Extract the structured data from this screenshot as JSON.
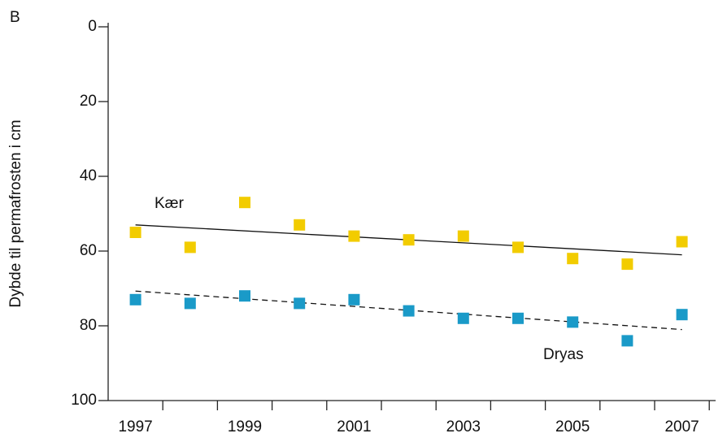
{
  "chart_data": {
    "type": "scatter",
    "panel_label": "B",
    "y_label": "Dybde til permafrosten i cm",
    "categories": [
      "1997",
      null,
      "1999",
      null,
      "2001",
      null,
      "2003",
      null,
      "2005",
      null,
      "2007"
    ],
    "ylim": [
      0,
      100
    ],
    "yticks": [
      0,
      20,
      40,
      60,
      80,
      100
    ],
    "y_inverted": true,
    "series": [
      {
        "name": "Kær",
        "color": "#f2cc00",
        "values": [
          55,
          59,
          47,
          53,
          56,
          57,
          56,
          59,
          62,
          63.5,
          57.5
        ],
        "trend": [
          53,
          61
        ],
        "trend_dashed": false
      },
      {
        "name": "Dryas",
        "color": "#1a9ac8",
        "values": [
          73,
          74,
          72,
          74,
          73,
          76,
          78,
          78,
          79,
          84,
          77
        ],
        "trend": [
          70.7,
          81
        ],
        "trend_dashed": true
      }
    ]
  }
}
